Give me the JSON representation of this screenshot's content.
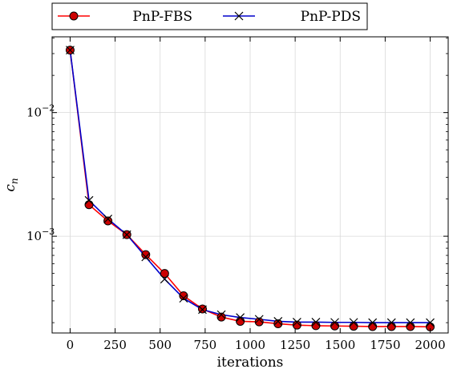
{
  "chart_data": {
    "type": "line",
    "xlabel": "iterations",
    "ylabel": "c",
    "ylabel_subscript": "n",
    "yscale": "log",
    "xlim": [
      -100,
      2100
    ],
    "ylim": [
      0.000165,
      0.041
    ],
    "x_ticks": [
      0,
      250,
      500,
      750,
      1000,
      1250,
      1500,
      1750,
      2000
    ],
    "x_tick_labels": [
      "0",
      "250",
      "500",
      "750",
      "1000",
      "1250",
      "1500",
      "1750",
      "2000"
    ],
    "y_ticks": [
      {
        "value": 0.01,
        "base": "10",
        "exp": "−2"
      },
      {
        "value": 0.001,
        "base": "10",
        "exp": "−3"
      }
    ],
    "grid": true,
    "legend_position": "top",
    "x": [
      0,
      105,
      210,
      315,
      420,
      525,
      630,
      735,
      840,
      945,
      1050,
      1155,
      1260,
      1365,
      1470,
      1575,
      1680,
      1785,
      1890,
      2000
    ],
    "series": [
      {
        "name": "PnP-FBS",
        "color": "#ff0000",
        "marker": "circle",
        "marker_face": "#cc0000",
        "values": [
          0.032,
          0.0018,
          0.00133,
          0.00103,
          0.00071,
          0.0005,
          0.00033,
          0.000258,
          0.000222,
          0.000205,
          0.000203,
          0.000196,
          0.000191,
          0.000189,
          0.000188,
          0.000187,
          0.000186,
          0.000186,
          0.000186,
          0.000185
        ]
      },
      {
        "name": "PnP-PDS",
        "color": "#0000cc",
        "marker": "x",
        "values": [
          0.032,
          0.00195,
          0.00138,
          0.00103,
          0.00068,
          0.00045,
          0.000315,
          0.000255,
          0.000232,
          0.00022,
          0.000213,
          0.000205,
          0.000202,
          0.000202,
          0.000201,
          0.000201,
          0.0002,
          0.0002,
          0.0002,
          0.0002
        ]
      }
    ]
  }
}
